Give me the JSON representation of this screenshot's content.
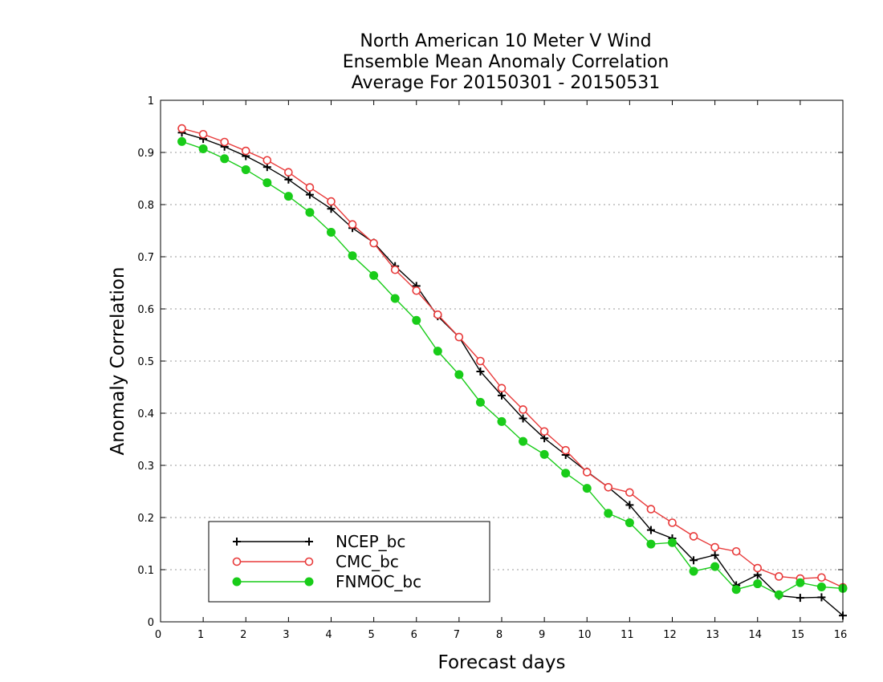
{
  "chart_data": {
    "type": "line",
    "title_lines": [
      "North American 10 Meter V Wind",
      "Ensemble Mean Anomaly Correlation",
      "Average For 20150301 - 20150531"
    ],
    "xlabel": "Forecast days",
    "ylabel": "Anomaly Correlation",
    "xlim": [
      0,
      16
    ],
    "ylim": [
      0,
      1
    ],
    "xticks": [
      0,
      1,
      2,
      3,
      4,
      5,
      6,
      7,
      8,
      9,
      10,
      11,
      12,
      13,
      14,
      15,
      16
    ],
    "yticks": [
      0,
      0.1,
      0.2,
      0.3,
      0.4,
      0.5,
      0.6,
      0.7,
      0.8,
      0.9,
      1
    ],
    "ytick_labels": [
      "0",
      "0.1",
      "0.2",
      "0.3",
      "0.4",
      "0.5",
      "0.6",
      "0.7",
      "0.8",
      "0.9",
      "1"
    ],
    "grid": "horizontal-dotted",
    "legend_position": "bottom-left",
    "x": [
      0.5,
      1,
      1.5,
      2,
      2.5,
      3,
      3.5,
      4,
      4.5,
      5,
      5.5,
      6,
      6.5,
      7,
      7.5,
      8,
      8.5,
      9,
      9.5,
      10,
      10.5,
      11,
      11.5,
      12,
      12.5,
      13,
      13.5,
      14,
      14.5,
      15,
      15.5,
      16
    ],
    "series": [
      {
        "name": "NCEP_bc",
        "color": "#000000",
        "marker": "plus",
        "values": [
          0.938,
          0.926,
          0.911,
          0.893,
          0.872,
          0.848,
          0.819,
          0.792,
          0.755,
          0.727,
          0.682,
          0.644,
          0.586,
          0.546,
          0.48,
          0.434,
          0.39,
          0.352,
          0.32,
          0.288,
          0.258,
          0.224,
          0.176,
          0.16,
          0.118,
          0.128,
          0.07,
          0.09,
          0.05,
          0.046,
          0.047,
          0.012
        ]
      },
      {
        "name": "CMC_bc",
        "color": "#e83a3a",
        "marker": "open-circle",
        "values": [
          0.946,
          0.935,
          0.92,
          0.903,
          0.885,
          0.862,
          0.833,
          0.806,
          0.762,
          0.726,
          0.675,
          0.635,
          0.589,
          0.546,
          0.5,
          0.448,
          0.407,
          0.365,
          0.329,
          0.287,
          0.258,
          0.248,
          0.216,
          0.19,
          0.164,
          0.143,
          0.135,
          0.103,
          0.087,
          0.083,
          0.085,
          0.066
        ]
      },
      {
        "name": "FNMOC_bc",
        "color": "#19cc19",
        "marker": "filled-circle",
        "values": [
          0.921,
          0.907,
          0.888,
          0.867,
          0.842,
          0.816,
          0.785,
          0.747,
          0.702,
          0.664,
          0.62,
          0.578,
          0.519,
          0.474,
          0.421,
          0.384,
          0.346,
          0.321,
          0.285,
          0.256,
          0.208,
          0.19,
          0.149,
          0.152,
          0.097,
          0.106,
          0.062,
          0.073,
          0.052,
          0.075,
          0.067,
          0.064
        ]
      }
    ]
  }
}
